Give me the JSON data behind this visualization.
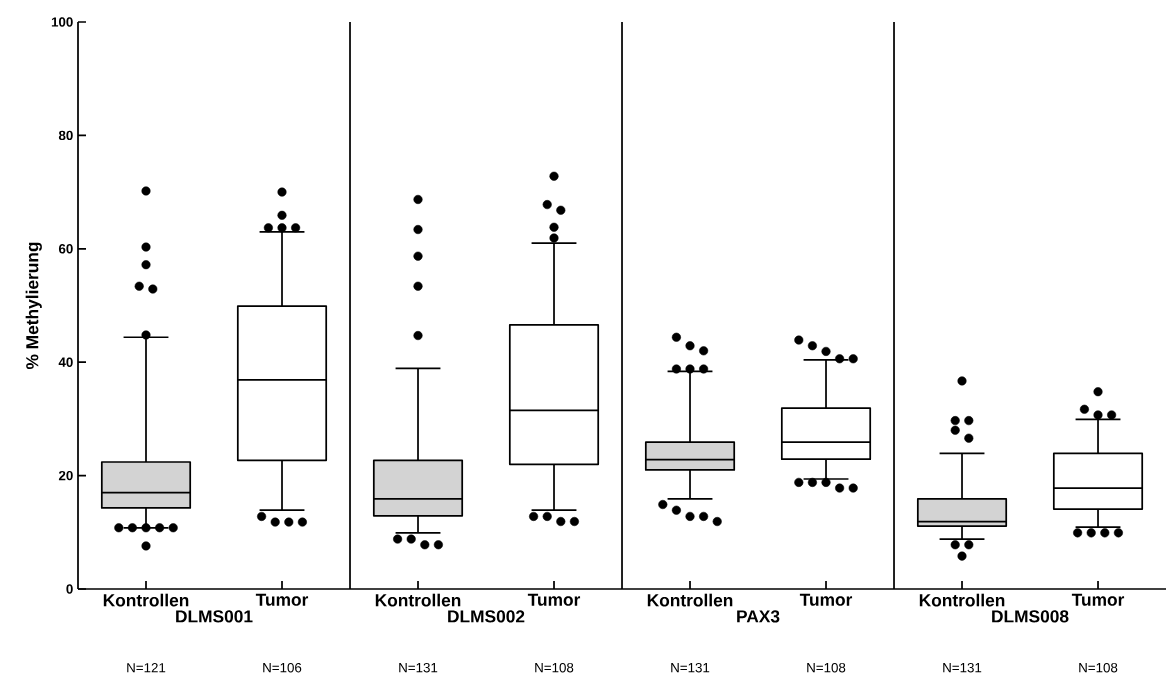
{
  "chart_data": [
    {
      "type": "box",
      "categories": [
        "Kontrollen",
        "Tumor"
      ],
      "xlabel": "DLMS001",
      "ylabel": "% Methylierung",
      "ylim": [
        0,
        100
      ],
      "yticks": [
        0,
        20,
        40,
        60,
        80,
        100
      ],
      "colors": [
        "#d3d3d3",
        "#ffffff"
      ],
      "marker": "circle",
      "annotations": [
        "N=121",
        "N=106"
      ],
      "boxes": [
        {
          "low": 10.8,
          "q1": 14.3,
          "median": 17.0,
          "q3": 22.4,
          "high": 44.4,
          "outliers": [
            70.2,
            60.3,
            57.2,
            53.4,
            52.9,
            44.8,
            10.8,
            10.8,
            10.8,
            10.8,
            10.8,
            7.6
          ]
        },
        {
          "low": 13.9,
          "q1": 22.7,
          "median": 36.9,
          "q3": 49.9,
          "high": 63.0,
          "outliers": [
            70.0,
            65.9,
            63.7,
            63.7,
            63.7,
            12.8,
            11.8,
            11.8,
            11.8
          ]
        }
      ]
    },
    {
      "type": "box",
      "categories": [
        "Kontrollen",
        "Tumor"
      ],
      "xlabel": "DLMS002",
      "ylim": [
        0,
        100
      ],
      "tick_labels": "x",
      "colors": [
        "#d3d3d3",
        "#ffffff"
      ],
      "marker": "circle",
      "annotations": [
        "N=131",
        "N=108"
      ],
      "boxes": [
        {
          "low": 9.9,
          "q1": 12.9,
          "median": 15.9,
          "q3": 22.7,
          "high": 38.9,
          "outliers": [
            68.7,
            63.4,
            58.7,
            53.4,
            44.7,
            8.8,
            8.8,
            7.8,
            7.8
          ]
        },
        {
          "low": 13.9,
          "q1": 22.0,
          "median": 31.5,
          "q3": 46.6,
          "high": 61.0,
          "outliers": [
            72.8,
            67.8,
            66.8,
            63.8,
            61.9,
            12.8,
            12.8,
            11.9,
            11.9
          ]
        }
      ]
    },
    {
      "type": "box",
      "categories": [
        "Kontrollen",
        "Tumor"
      ],
      "xlabel": "PAX3",
      "ylim": [
        0,
        100
      ],
      "tick_labels": "x",
      "colors": [
        "#d3d3d3",
        "#ffffff"
      ],
      "marker": "circle",
      "annotations": [
        "N=131",
        "N=108"
      ],
      "boxes": [
        {
          "low": 15.9,
          "q1": 21.0,
          "median": 22.8,
          "q3": 25.9,
          "high": 38.4,
          "outliers": [
            44.4,
            42.9,
            42.0,
            38.8,
            38.8,
            38.8,
            14.9,
            13.9,
            12.8,
            12.8,
            11.9
          ]
        },
        {
          "low": 19.4,
          "q1": 22.9,
          "median": 25.9,
          "q3": 31.9,
          "high": 40.4,
          "outliers": [
            43.9,
            42.9,
            41.9,
            40.6,
            40.6,
            18.8,
            18.8,
            18.8,
            17.8,
            17.8
          ]
        }
      ]
    },
    {
      "type": "box",
      "categories": [
        "Kontrollen",
        "Tumor"
      ],
      "xlabel": "DLMS008",
      "ylim": [
        0,
        100
      ],
      "tick_labels": "x",
      "colors": [
        "#d3d3d3",
        "#ffffff"
      ],
      "marker": "circle",
      "annotations": [
        "N=131",
        "N=108"
      ],
      "boxes": [
        {
          "low": 8.8,
          "q1": 11.1,
          "median": 11.9,
          "q3": 15.9,
          "high": 23.9,
          "outliers": [
            36.7,
            29.7,
            29.7,
            28.0,
            26.6,
            7.8,
            7.8,
            5.8
          ]
        },
        {
          "low": 10.9,
          "q1": 14.1,
          "median": 17.8,
          "q3": 23.9,
          "high": 29.9,
          "outliers": [
            34.8,
            31.7,
            30.7,
            30.7,
            9.9,
            9.9,
            9.9,
            9.9
          ]
        }
      ]
    }
  ]
}
